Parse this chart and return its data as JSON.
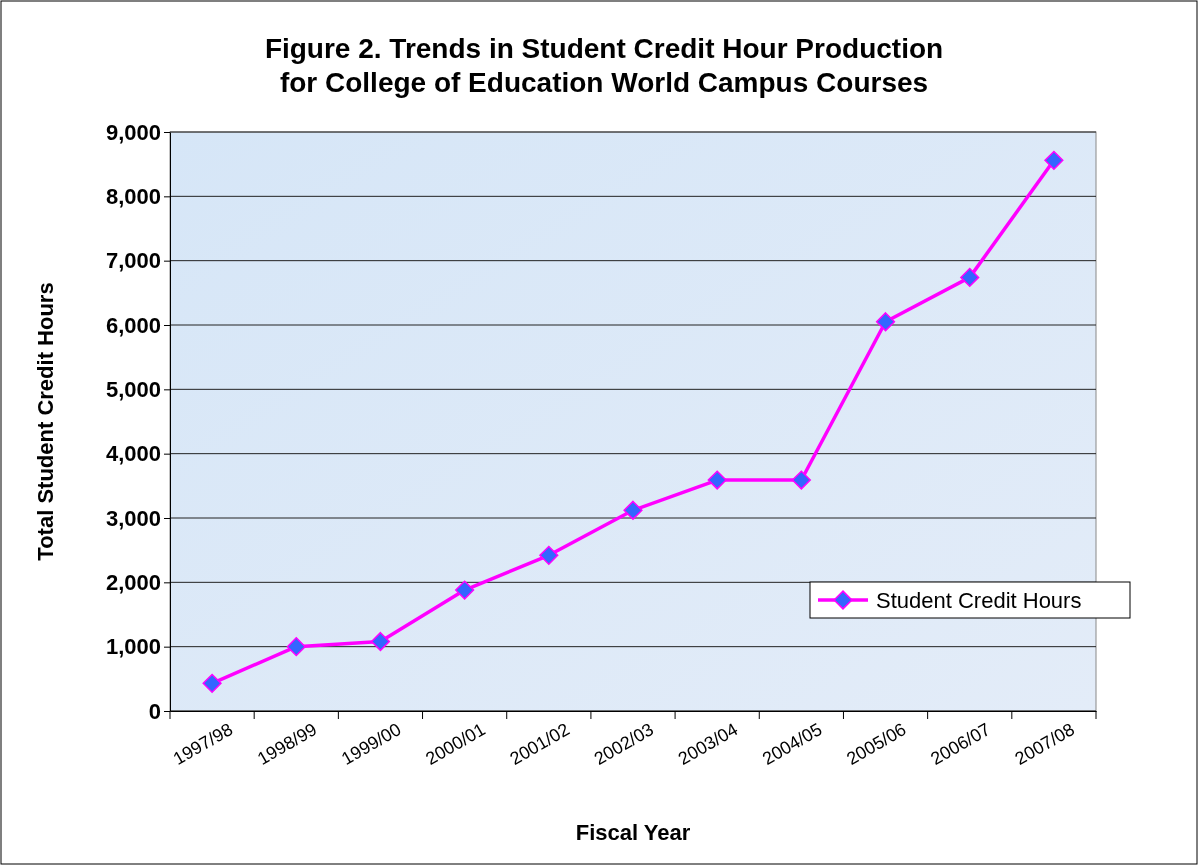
{
  "chart_data": {
    "type": "line",
    "title": "Figure 2.  Trends in Student Credit Hour Production\nfor College of Education World Campus Courses",
    "xlabel": "Fiscal Year",
    "ylabel": "Total Student Credit Hours",
    "categories": [
      "1997/98",
      "1998/99",
      "1999/00",
      "2000/01",
      "2001/02",
      "2002/03",
      "2003/04",
      "2004/05",
      "2005/06",
      "2006/07",
      "2007/08"
    ],
    "series": [
      {
        "name": "Student Credit Hours",
        "color": "#ff00ff",
        "values": [
          430,
          1000,
          1080,
          1880,
          2420,
          3120,
          3590,
          3590,
          6050,
          6740,
          8560
        ]
      }
    ],
    "ylim": [
      0,
      9000
    ],
    "yticks": [
      {
        "value": 0,
        "label": "0"
      },
      {
        "value": 1000,
        "label": "1,000"
      },
      {
        "value": 2000,
        "label": "2,000"
      },
      {
        "value": 3000,
        "label": "3,000"
      },
      {
        "value": 4000,
        "label": "4,000"
      },
      {
        "value": 5000,
        "label": "5,000"
      },
      {
        "value": 6000,
        "label": "6,000"
      },
      {
        "value": 7000,
        "label": "7,000"
      },
      {
        "value": 8000,
        "label": "8,000"
      },
      {
        "value": 9000,
        "label": "9,000"
      }
    ],
    "grid": "y",
    "legend": "right",
    "marker": "diamond",
    "line_style": "solid"
  }
}
